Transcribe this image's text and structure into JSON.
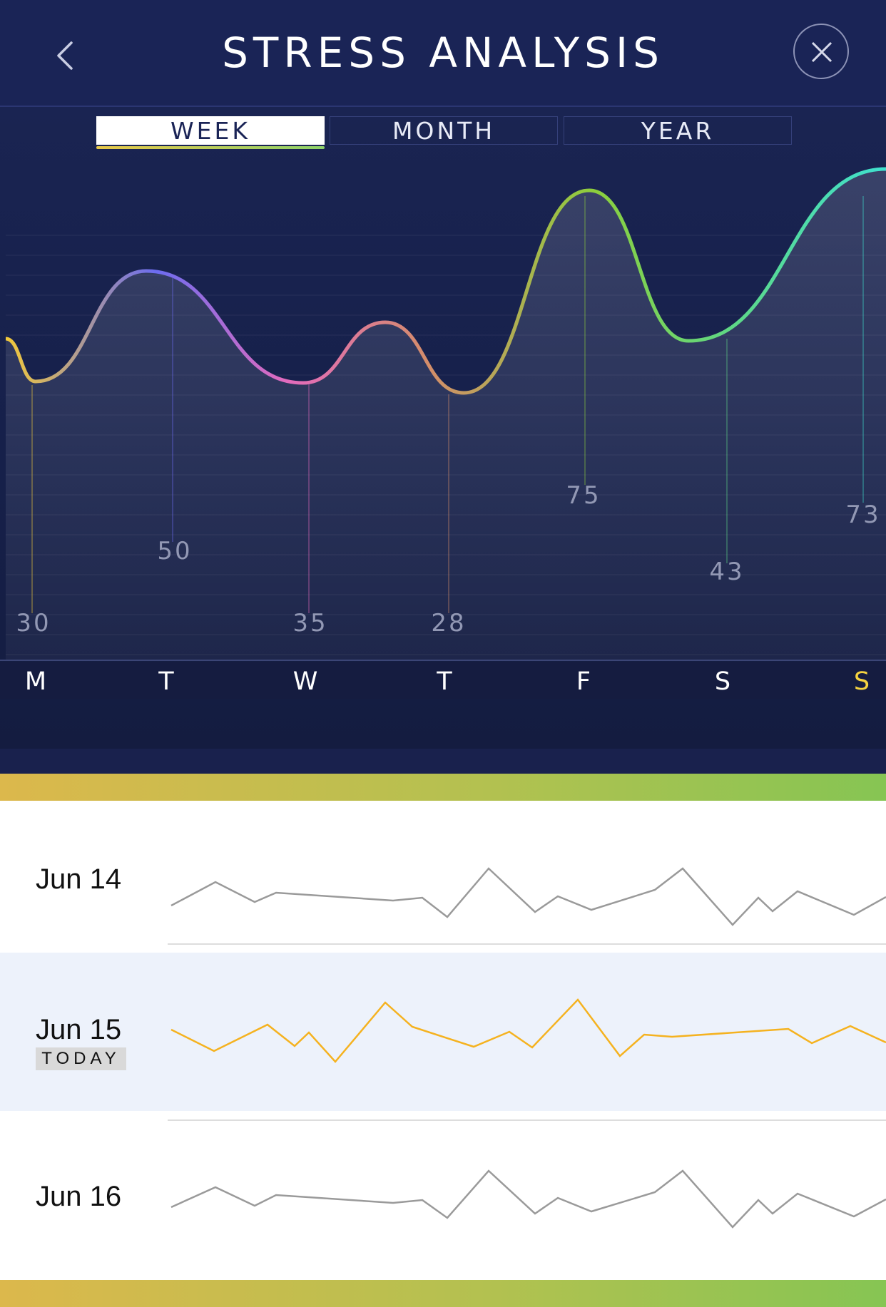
{
  "header": {
    "title": "STRESS ANALYSIS",
    "back_icon": "chevron-left-icon",
    "close_icon": "close-icon"
  },
  "tabs": [
    {
      "label": "WEEK",
      "active": true
    },
    {
      "label": "MONTH",
      "active": false
    },
    {
      "label": "YEAR",
      "active": false
    }
  ],
  "chart_data": {
    "type": "line",
    "categories": [
      "M",
      "T",
      "W",
      "T",
      "F",
      "S",
      "S"
    ],
    "values": [
      30,
      50,
      35,
      28,
      75,
      43,
      73
    ],
    "highlight_index": 6,
    "grid": true,
    "colors": [
      "#f2c93a",
      "#6c6cf0",
      "#e36bbd",
      "#d48d6a",
      "#8ccf3c",
      "#5fd784",
      "#3fe0cf"
    ]
  },
  "day_list": [
    {
      "date": "Jun 14",
      "today": false,
      "badge": "",
      "color": "#9a9a9a"
    },
    {
      "date": "Jun 15",
      "today": true,
      "badge": "TODAY",
      "color": "#f5b21f"
    },
    {
      "date": "Jun 16",
      "today": false,
      "badge": "",
      "color": "#9a9a9a"
    }
  ],
  "colors": {
    "header_bg": "#1a2456",
    "accent_today": "#f5d340",
    "band_start": "#dcb84c",
    "band_end": "#86c553"
  }
}
